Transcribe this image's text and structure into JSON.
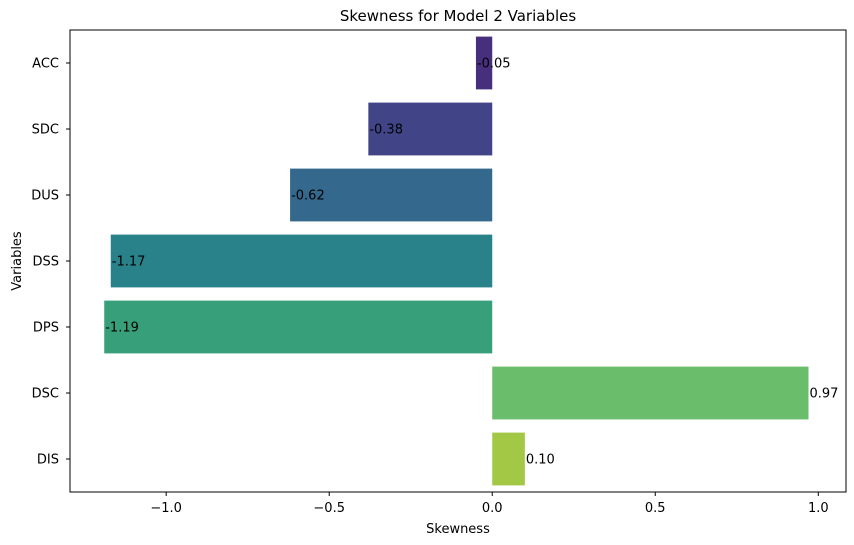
{
  "chart_data": {
    "type": "bar",
    "orientation": "horizontal",
    "title": "Skewness for Model 2 Variables",
    "xlabel": "Skewness",
    "ylabel": "Variables",
    "categories": [
      "ACC",
      "SDC",
      "DUS",
      "DSS",
      "DPS",
      "DSC",
      "DIS"
    ],
    "values": [
      -0.05,
      -0.38,
      -0.62,
      -1.17,
      -1.19,
      0.97,
      0.1
    ],
    "value_labels": [
      "-0.05",
      "-0.38",
      "-0.62",
      "-1.17",
      "-1.19",
      "0.97",
      "0.10"
    ],
    "colors": [
      "#472f7d",
      "#414487",
      "#34688d",
      "#29818a",
      "#37a07a",
      "#6abd6a",
      "#a3c845"
    ],
    "xlim": [
      -1.295,
      1.085
    ],
    "xticks": [
      -1.0,
      -0.5,
      0.0,
      0.5,
      1.0
    ],
    "xtick_labels": [
      "−1.0",
      "−0.5",
      "0.0",
      "0.5",
      "1.0"
    ],
    "grid": false,
    "legend": "none"
  }
}
